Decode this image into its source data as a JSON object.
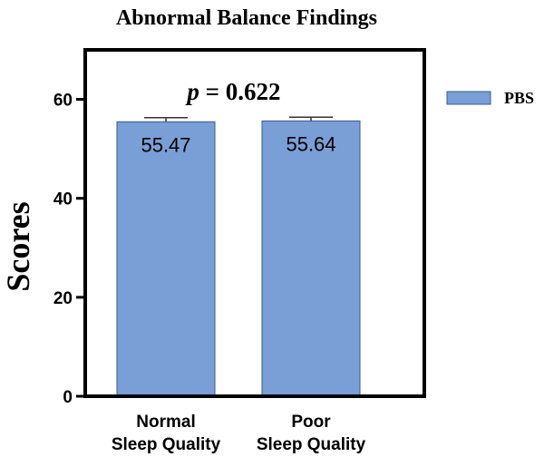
{
  "chart_data": {
    "type": "bar",
    "title": "Abnormal Balance Findings",
    "ylabel": "Scores",
    "xlabel": "",
    "ylim": [
      0,
      70
    ],
    "yticks": [
      0,
      20,
      40,
      60
    ],
    "categories": [
      "Normal Sleep Quality",
      "Poor Sleep Quality"
    ],
    "category_lines": [
      [
        "Normal",
        "Sleep Quality"
      ],
      [
        "Poor",
        "Sleep Quality"
      ]
    ],
    "series": [
      {
        "name": "PBS",
        "values": [
          55.47,
          55.64
        ],
        "value_labels": [
          "55.47",
          "55.64"
        ],
        "error_upper": [
          56.3,
          56.4
        ],
        "color": "#7a9ed6"
      }
    ],
    "annotation": {
      "prefix": "p",
      "text": " = 0.622"
    },
    "legend": {
      "position": "right",
      "entries": [
        "PBS"
      ]
    },
    "grid": false
  }
}
